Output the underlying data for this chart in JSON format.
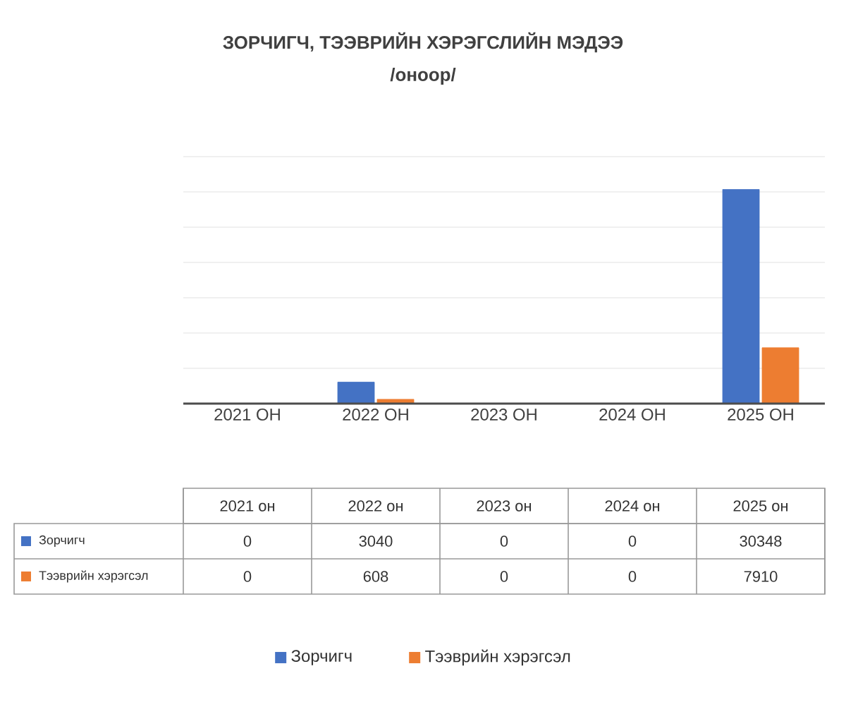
{
  "chart_data": {
    "type": "bar",
    "title": "ЗОРЧИГЧ, ТЭЭВРИЙН ХЭРЭГСЛИЙН МЭДЭЭ",
    "subtitle": "/оноор/",
    "categories": [
      "2021 ОН",
      "2022 ОН",
      "2023 ОН",
      "2024 ОН",
      "2025 ОН"
    ],
    "series": [
      {
        "name": "Зорчигч",
        "color": "#4472c4",
        "values": [
          0,
          3040,
          0,
          0,
          30348
        ]
      },
      {
        "name": "Тээврийн хэрэгсэл",
        "color": "#ed7d31",
        "values": [
          0,
          608,
          0,
          0,
          7910
        ]
      }
    ],
    "ylim": [
      0,
      35000
    ],
    "yticks": [
      {
        "value": 0,
        "label": null
      },
      {
        "value": 5000,
        "label": null
      },
      {
        "value": 10000,
        "label": null
      },
      {
        "value": 15000,
        "label": null
      },
      {
        "value": 20000,
        "label": null
      },
      {
        "value": 25000,
        "label": null
      },
      {
        "value": 30000,
        "label": null
      },
      {
        "value": 35000,
        "label": null
      }
    ],
    "grid": "y",
    "legend": "bottom",
    "data_labels": true,
    "annotations": [
      "2021 он",
      "2022 он",
      "2023 он",
      "2024 он",
      "2025 он"
    ]
  }
}
